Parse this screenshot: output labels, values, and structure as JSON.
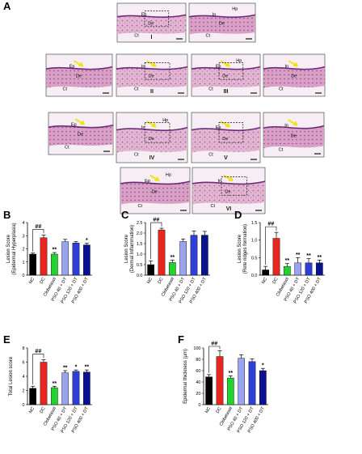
{
  "panels": {
    "micro": {
      "label": "A",
      "roman": [
        "I",
        "II",
        "III",
        "IV",
        "V",
        "VI"
      ],
      "tissue_labels": [
        "Ep",
        "De",
        "Ct",
        "In",
        "Hp"
      ],
      "colors": {
        "tissue_pink": "#d9a3c3",
        "tissue_purple": "#9a5fa0",
        "arrow_yellow": "#f2e21b"
      }
    }
  },
  "chart_data": [
    {
      "id": "B",
      "type": "bar",
      "categories": [
        "NC",
        "DC",
        "Clobetasol",
        "PSO 40 + DT",
        "PSO 120 + DT",
        "PSO 400 + DT"
      ],
      "values": [
        1.6,
        2.85,
        1.6,
        2.55,
        2.45,
        2.3
      ],
      "errors": [
        0.08,
        0.2,
        0.12,
        0.17,
        0.1,
        0.12
      ],
      "ylabel": "Lesion Score",
      "ylabel2": "(Epidermal Hyperplasia)",
      "yticks": [
        0,
        1,
        2,
        3,
        4
      ],
      "ylim": [
        0,
        4
      ],
      "sig": [
        "",
        "",
        "**",
        "",
        "",
        "*"
      ],
      "hash": "##"
    },
    {
      "id": "C",
      "type": "bar",
      "categories": [
        "NC",
        "DC",
        "Clobetasol",
        "PSO 40 + DT",
        "PSO 120 + DT",
        "PSO 400 + DT"
      ],
      "values": [
        0.5,
        2.15,
        0.6,
        1.6,
        1.9,
        1.9
      ],
      "errors": [
        0.18,
        0.08,
        0.12,
        0.12,
        0.2,
        0.18
      ],
      "ylabel": "Lesion Score",
      "ylabel2": "(Dermal Inflammation)",
      "yticks": [
        0.0,
        0.5,
        1.0,
        1.5,
        2.0,
        2.5
      ],
      "ylim": [
        0,
        2.5
      ],
      "sig": [
        "",
        "",
        "**",
        "",
        "",
        ""
      ],
      "hash": "##"
    },
    {
      "id": "D",
      "type": "bar",
      "categories": [
        "NC",
        "DC",
        "Clobetasol",
        "PSO 40 + DT",
        "PSO 120 + DT",
        "PSO 400 + DT"
      ],
      "values": [
        0.15,
        1.05,
        0.25,
        0.35,
        0.35,
        0.35
      ],
      "errors": [
        0.1,
        0.17,
        0.08,
        0.15,
        0.12,
        0.08
      ],
      "ylabel": "Lesion Score",
      "ylabel2": "(Rete ridges formation)",
      "yticks": [
        0.0,
        0.5,
        1.0,
        1.5
      ],
      "ylim": [
        0,
        1.5
      ],
      "sig": [
        "",
        "",
        "**",
        "**",
        "**",
        "**"
      ],
      "hash": "##"
    },
    {
      "id": "E",
      "type": "bar",
      "categories": [
        "NC",
        "DC",
        "Clobetasol",
        "PSO 40 + DT",
        "PSO 120 + DT",
        "PSO 400 + DT"
      ],
      "values": [
        2.3,
        6.0,
        2.4,
        4.5,
        4.7,
        4.6
      ],
      "errors": [
        0.3,
        0.35,
        0.2,
        0.3,
        0.2,
        0.3
      ],
      "ylabel": "Total Lesion score",
      "ylabel2": "",
      "yticks": [
        0,
        2,
        4,
        6,
        8
      ],
      "ylim": [
        0,
        8
      ],
      "sig": [
        "",
        "",
        "**",
        "**",
        "*",
        "**"
      ],
      "hash": "##"
    },
    {
      "id": "F",
      "type": "bar",
      "categories": [
        "NC",
        "DC",
        "Clobetasol",
        "PSO 40 + DT",
        "PSO 120 + DT",
        "PSO 400 + DT"
      ],
      "values": [
        49,
        85,
        47,
        82,
        76,
        60
      ],
      "errors": [
        4,
        10,
        4,
        6,
        5,
        4
      ],
      "ylabel": "Epidermal thickness (µm)",
      "ylabel2": "",
      "yticks": [
        0,
        20,
        40,
        60,
        80,
        100
      ],
      "ylim": [
        0,
        100
      ],
      "sig": [
        "",
        "",
        "**",
        "",
        "",
        "*"
      ],
      "hash": "##"
    }
  ],
  "bar_colors": [
    "#000000",
    "#e6261f",
    "#22d22e",
    "#9aa3f0",
    "#2f3fd6",
    "#0a1290"
  ]
}
